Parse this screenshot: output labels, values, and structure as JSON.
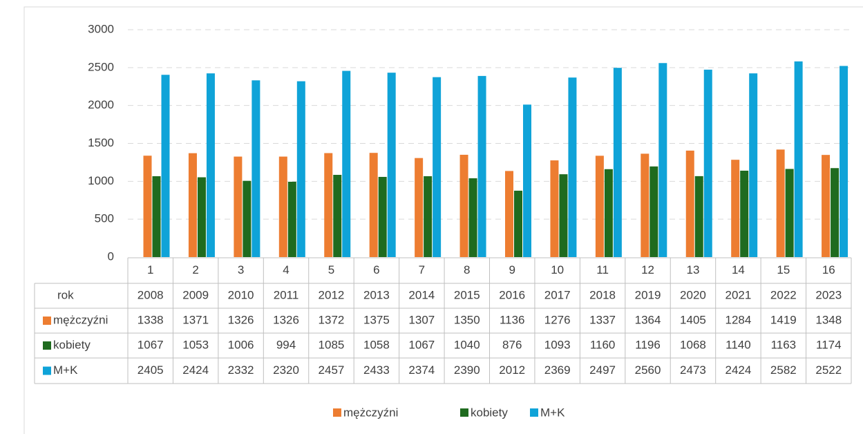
{
  "chart_data": {
    "type": "bar",
    "categories": [
      "1",
      "2",
      "3",
      "4",
      "5",
      "6",
      "7",
      "8",
      "9",
      "10",
      "11",
      "12",
      "13",
      "14",
      "15",
      "16"
    ],
    "table_header": "rok",
    "years": [
      2008,
      2009,
      2010,
      2011,
      2012,
      2013,
      2014,
      2015,
      2016,
      2017,
      2018,
      2019,
      2020,
      2021,
      2022,
      2023
    ],
    "series": [
      {
        "name": "mężczyźni",
        "color": "#ed7d31",
        "values": [
          1338,
          1371,
          1326,
          1326,
          1372,
          1375,
          1307,
          1350,
          1136,
          1276,
          1337,
          1364,
          1405,
          1284,
          1419,
          1348
        ]
      },
      {
        "name": "kobiety",
        "color": "#1f6b1f",
        "values": [
          1067,
          1053,
          1006,
          994,
          1085,
          1058,
          1067,
          1040,
          876,
          1093,
          1160,
          1196,
          1068,
          1140,
          1163,
          1174
        ]
      },
      {
        "name": "M+K",
        "color": "#0fa3d8",
        "values": [
          2405,
          2424,
          2332,
          2320,
          2457,
          2433,
          2374,
          2390,
          2012,
          2369,
          2497,
          2560,
          2473,
          2424,
          2582,
          2522
        ]
      }
    ],
    "ylim": [
      0,
      3000
    ],
    "yticks": [
      0,
      500,
      1000,
      1500,
      2000,
      2500,
      3000
    ],
    "grid": true,
    "legend": "bottom"
  }
}
